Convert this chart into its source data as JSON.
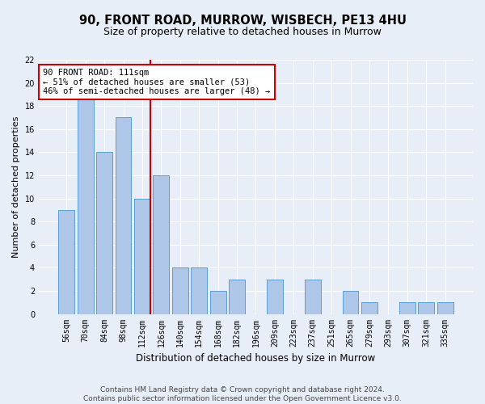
{
  "title": "90, FRONT ROAD, MURROW, WISBECH, PE13 4HU",
  "subtitle": "Size of property relative to detached houses in Murrow",
  "xlabel": "Distribution of detached houses by size in Murrow",
  "ylabel": "Number of detached properties",
  "categories": [
    "56sqm",
    "70sqm",
    "84sqm",
    "98sqm",
    "112sqm",
    "126sqm",
    "140sqm",
    "154sqm",
    "168sqm",
    "182sqm",
    "196sqm",
    "209sqm",
    "223sqm",
    "237sqm",
    "251sqm",
    "265sqm",
    "279sqm",
    "293sqm",
    "307sqm",
    "321sqm",
    "335sqm"
  ],
  "values": [
    9,
    19,
    14,
    17,
    10,
    12,
    4,
    4,
    2,
    3,
    0,
    3,
    0,
    3,
    0,
    2,
    1,
    0,
    1,
    1,
    1
  ],
  "bar_color": "#aec6e8",
  "bar_edge_color": "#5a9fd4",
  "highlight_index": 4,
  "highlight_line_color": "#cc0000",
  "annotation_text": "90 FRONT ROAD: 111sqm\n← 51% of detached houses are smaller (53)\n46% of semi-detached houses are larger (48) →",
  "annotation_box_color": "#ffffff",
  "annotation_box_edge_color": "#cc0000",
  "ylim": [
    0,
    22
  ],
  "yticks": [
    0,
    2,
    4,
    6,
    8,
    10,
    12,
    14,
    16,
    18,
    20,
    22
  ],
  "footer_text": "Contains HM Land Registry data © Crown copyright and database right 2024.\nContains public sector information licensed under the Open Government Licence v3.0.",
  "background_color": "#e8eef8",
  "grid_color": "#ffffff",
  "title_fontsize": 10.5,
  "subtitle_fontsize": 9,
  "tick_fontsize": 7,
  "ylabel_fontsize": 8,
  "xlabel_fontsize": 8.5,
  "footer_fontsize": 6.5,
  "annotation_fontsize": 7.5
}
